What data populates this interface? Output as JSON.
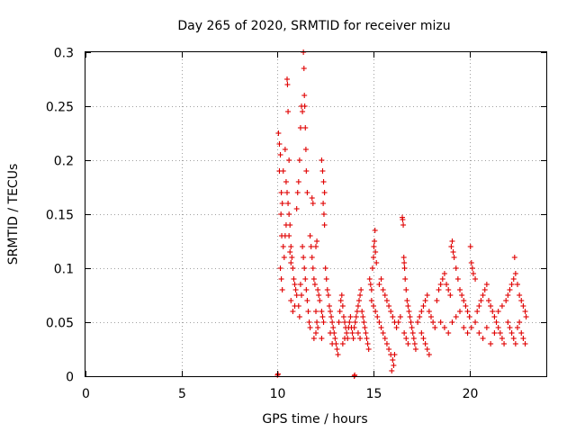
{
  "chart_data": {
    "type": "scatter",
    "title": "Day 265 of 2020, SRMTID for receiver mizu",
    "xlabel": "GPS time / hours",
    "ylabel": "SRMTID / TECUs",
    "xlim": [
      0,
      24
    ],
    "ylim": [
      0,
      0.3
    ],
    "xticks": [
      0,
      5,
      10,
      15,
      20
    ],
    "xtick_labels": [
      "0",
      "5",
      "10",
      "15",
      "20"
    ],
    "yticks": [
      0,
      0.05,
      0.1,
      0.15,
      0.2,
      0.25,
      0.3
    ],
    "ytick_labels": [
      "0",
      "0.05",
      "0.1",
      "0.15",
      "0.2",
      "0.25",
      "0.3"
    ],
    "grid": true,
    "marker": "+",
    "color": "#e00000",
    "series": [
      {
        "name": "SRMTID",
        "points": [
          [
            10.0,
            0.001
          ],
          [
            10.03,
            0.002
          ],
          [
            14.0,
            0.0
          ],
          [
            14.02,
            0.001
          ],
          [
            10.05,
            0.225
          ],
          [
            10.1,
            0.215
          ],
          [
            10.15,
            0.205
          ],
          [
            10.2,
            0.17
          ],
          [
            10.25,
            0.16
          ],
          [
            10.1,
            0.19
          ],
          [
            10.18,
            0.15
          ],
          [
            10.22,
            0.13
          ],
          [
            10.3,
            0.12
          ],
          [
            10.35,
            0.11
          ],
          [
            10.15,
            0.1
          ],
          [
            10.2,
            0.09
          ],
          [
            10.25,
            0.08
          ],
          [
            10.3,
            0.19
          ],
          [
            10.4,
            0.21
          ],
          [
            10.5,
            0.275
          ],
          [
            10.52,
            0.27
          ],
          [
            10.55,
            0.245
          ],
          [
            10.6,
            0.2
          ],
          [
            10.45,
            0.18
          ],
          [
            10.5,
            0.17
          ],
          [
            10.55,
            0.16
          ],
          [
            10.6,
            0.15
          ],
          [
            10.65,
            0.14
          ],
          [
            10.7,
            0.12
          ],
          [
            10.75,
            0.11
          ],
          [
            10.8,
            0.1
          ],
          [
            10.85,
            0.09
          ],
          [
            10.9,
            0.085
          ],
          [
            10.95,
            0.08
          ],
          [
            10.7,
            0.07
          ],
          [
            10.8,
            0.06
          ],
          [
            10.9,
            0.065
          ],
          [
            11.0,
            0.075
          ],
          [
            10.6,
            0.13
          ],
          [
            10.65,
            0.115
          ],
          [
            10.7,
            0.105
          ],
          [
            10.4,
            0.13
          ],
          [
            10.45,
            0.14
          ],
          [
            11.0,
            0.155
          ],
          [
            11.05,
            0.17
          ],
          [
            11.1,
            0.18
          ],
          [
            11.15,
            0.2
          ],
          [
            11.2,
            0.23
          ],
          [
            11.25,
            0.25
          ],
          [
            11.3,
            0.245
          ],
          [
            11.35,
            0.3
          ],
          [
            11.38,
            0.285
          ],
          [
            11.4,
            0.26
          ],
          [
            11.42,
            0.25
          ],
          [
            11.45,
            0.23
          ],
          [
            11.48,
            0.21
          ],
          [
            11.5,
            0.19
          ],
          [
            11.55,
            0.17
          ],
          [
            11.3,
            0.12
          ],
          [
            11.35,
            0.11
          ],
          [
            11.4,
            0.1
          ],
          [
            11.45,
            0.09
          ],
          [
            11.5,
            0.08
          ],
          [
            11.55,
            0.07
          ],
          [
            11.6,
            0.06
          ],
          [
            11.65,
            0.05
          ],
          [
            11.7,
            0.045
          ],
          [
            11.2,
            0.085
          ],
          [
            11.25,
            0.075
          ],
          [
            11.1,
            0.065
          ],
          [
            11.15,
            0.055
          ],
          [
            11.7,
            0.13
          ],
          [
            11.75,
            0.12
          ],
          [
            11.8,
            0.11
          ],
          [
            11.85,
            0.1
          ],
          [
            11.9,
            0.09
          ],
          [
            11.95,
            0.085
          ],
          [
            12.0,
            0.12
          ],
          [
            12.05,
            0.125
          ],
          [
            11.8,
            0.165
          ],
          [
            11.85,
            0.16
          ],
          [
            12.1,
            0.08
          ],
          [
            12.15,
            0.075
          ],
          [
            12.2,
            0.07
          ],
          [
            12.0,
            0.06
          ],
          [
            12.05,
            0.05
          ],
          [
            12.1,
            0.045
          ],
          [
            11.9,
            0.035
          ],
          [
            12.0,
            0.04
          ],
          [
            12.3,
            0.2
          ],
          [
            12.35,
            0.19
          ],
          [
            12.4,
            0.18
          ],
          [
            12.45,
            0.17
          ],
          [
            12.38,
            0.16
          ],
          [
            12.42,
            0.15
          ],
          [
            12.45,
            0.14
          ],
          [
            12.5,
            0.1
          ],
          [
            12.55,
            0.09
          ],
          [
            12.6,
            0.08
          ],
          [
            12.65,
            0.075
          ],
          [
            12.3,
            0.06
          ],
          [
            12.35,
            0.055
          ],
          [
            12.4,
            0.05
          ],
          [
            12.3,
            0.035
          ],
          [
            12.7,
            0.065
          ],
          [
            12.75,
            0.06
          ],
          [
            12.8,
            0.055
          ],
          [
            12.85,
            0.05
          ],
          [
            12.9,
            0.045
          ],
          [
            12.95,
            0.04
          ],
          [
            13.0,
            0.035
          ],
          [
            13.05,
            0.03
          ],
          [
            13.1,
            0.025
          ],
          [
            13.15,
            0.02
          ],
          [
            12.75,
            0.04
          ],
          [
            12.85,
            0.03
          ],
          [
            13.2,
            0.05
          ],
          [
            13.25,
            0.06
          ],
          [
            13.3,
            0.07
          ],
          [
            13.35,
            0.075
          ],
          [
            13.4,
            0.065
          ],
          [
            13.45,
            0.055
          ],
          [
            13.5,
            0.05
          ],
          [
            13.55,
            0.045
          ],
          [
            13.6,
            0.04
          ],
          [
            13.65,
            0.035
          ],
          [
            13.7,
            0.045
          ],
          [
            13.75,
            0.05
          ],
          [
            13.8,
            0.055
          ],
          [
            13.85,
            0.045
          ],
          [
            13.9,
            0.04
          ],
          [
            13.95,
            0.035
          ],
          [
            13.4,
            0.03
          ],
          [
            13.5,
            0.035
          ],
          [
            14.0,
            0.045
          ],
          [
            14.05,
            0.05
          ],
          [
            14.1,
            0.055
          ],
          [
            14.15,
            0.06
          ],
          [
            14.2,
            0.065
          ],
          [
            14.25,
            0.07
          ],
          [
            14.3,
            0.075
          ],
          [
            14.35,
            0.08
          ],
          [
            14.4,
            0.06
          ],
          [
            14.45,
            0.055
          ],
          [
            14.5,
            0.05
          ],
          [
            14.55,
            0.045
          ],
          [
            14.6,
            0.04
          ],
          [
            14.65,
            0.035
          ],
          [
            14.7,
            0.03
          ],
          [
            14.75,
            0.025
          ],
          [
            14.2,
            0.04
          ],
          [
            14.3,
            0.035
          ],
          [
            14.8,
            0.09
          ],
          [
            14.85,
            0.085
          ],
          [
            14.9,
            0.08
          ],
          [
            14.95,
            0.1
          ],
          [
            15.0,
            0.11
          ],
          [
            15.02,
            0.12
          ],
          [
            15.05,
            0.125
          ],
          [
            15.08,
            0.135
          ],
          [
            15.1,
            0.115
          ],
          [
            15.15,
            0.105
          ],
          [
            14.9,
            0.07
          ],
          [
            15.0,
            0.065
          ],
          [
            15.1,
            0.06
          ],
          [
            15.2,
            0.055
          ],
          [
            15.3,
            0.05
          ],
          [
            15.4,
            0.045
          ],
          [
            15.5,
            0.04
          ],
          [
            15.6,
            0.035
          ],
          [
            15.7,
            0.03
          ],
          [
            15.8,
            0.025
          ],
          [
            15.9,
            0.02
          ],
          [
            16.0,
            0.015
          ],
          [
            15.95,
            0.005
          ],
          [
            16.05,
            0.01
          ],
          [
            16.1,
            0.02
          ],
          [
            15.3,
            0.085
          ],
          [
            15.4,
            0.09
          ],
          [
            15.5,
            0.08
          ],
          [
            15.6,
            0.075
          ],
          [
            15.7,
            0.07
          ],
          [
            15.8,
            0.065
          ],
          [
            15.9,
            0.06
          ],
          [
            16.0,
            0.055
          ],
          [
            16.1,
            0.05
          ],
          [
            16.2,
            0.045
          ],
          [
            16.3,
            0.05
          ],
          [
            16.4,
            0.055
          ],
          [
            16.5,
            0.147
          ],
          [
            16.52,
            0.145
          ],
          [
            16.55,
            0.14
          ],
          [
            16.58,
            0.11
          ],
          [
            16.6,
            0.105
          ],
          [
            16.62,
            0.1
          ],
          [
            16.65,
            0.09
          ],
          [
            16.7,
            0.08
          ],
          [
            16.75,
            0.07
          ],
          [
            16.8,
            0.065
          ],
          [
            16.85,
            0.06
          ],
          [
            16.9,
            0.055
          ],
          [
            16.95,
            0.05
          ],
          [
            17.0,
            0.045
          ],
          [
            17.05,
            0.04
          ],
          [
            17.1,
            0.035
          ],
          [
            17.15,
            0.03
          ],
          [
            17.2,
            0.025
          ],
          [
            16.6,
            0.04
          ],
          [
            16.7,
            0.035
          ],
          [
            16.8,
            0.03
          ],
          [
            17.3,
            0.05
          ],
          [
            17.4,
            0.055
          ],
          [
            17.5,
            0.06
          ],
          [
            17.6,
            0.065
          ],
          [
            17.7,
            0.07
          ],
          [
            17.8,
            0.075
          ],
          [
            17.9,
            0.06
          ],
          [
            18.0,
            0.055
          ],
          [
            18.1,
            0.05
          ],
          [
            18.2,
            0.045
          ],
          [
            17.5,
            0.04
          ],
          [
            17.6,
            0.035
          ],
          [
            17.7,
            0.03
          ],
          [
            17.8,
            0.025
          ],
          [
            17.9,
            0.02
          ],
          [
            18.3,
            0.07
          ],
          [
            18.4,
            0.08
          ],
          [
            18.5,
            0.085
          ],
          [
            18.6,
            0.09
          ],
          [
            18.7,
            0.095
          ],
          [
            18.8,
            0.085
          ],
          [
            18.9,
            0.08
          ],
          [
            19.0,
            0.075
          ],
          [
            19.05,
            0.12
          ],
          [
            19.1,
            0.125
          ],
          [
            19.15,
            0.115
          ],
          [
            19.2,
            0.11
          ],
          [
            19.3,
            0.1
          ],
          [
            19.4,
            0.09
          ],
          [
            19.5,
            0.08
          ],
          [
            19.6,
            0.075
          ],
          [
            19.7,
            0.07
          ],
          [
            19.8,
            0.065
          ],
          [
            19.9,
            0.06
          ],
          [
            20.0,
            0.055
          ],
          [
            20.05,
            0.12
          ],
          [
            20.1,
            0.105
          ],
          [
            20.15,
            0.1
          ],
          [
            20.2,
            0.095
          ],
          [
            20.3,
            0.09
          ],
          [
            18.5,
            0.05
          ],
          [
            18.7,
            0.045
          ],
          [
            18.9,
            0.04
          ],
          [
            19.1,
            0.05
          ],
          [
            19.3,
            0.055
          ],
          [
            19.5,
            0.06
          ],
          [
            19.7,
            0.045
          ],
          [
            19.9,
            0.04
          ],
          [
            20.1,
            0.045
          ],
          [
            20.3,
            0.05
          ],
          [
            20.4,
            0.06
          ],
          [
            20.5,
            0.065
          ],
          [
            20.6,
            0.07
          ],
          [
            20.7,
            0.075
          ],
          [
            20.8,
            0.08
          ],
          [
            20.9,
            0.085
          ],
          [
            21.0,
            0.07
          ],
          [
            21.1,
            0.065
          ],
          [
            21.2,
            0.06
          ],
          [
            21.3,
            0.055
          ],
          [
            21.4,
            0.05
          ],
          [
            21.5,
            0.045
          ],
          [
            21.6,
            0.04
          ],
          [
            21.7,
            0.035
          ],
          [
            21.8,
            0.03
          ],
          [
            20.5,
            0.04
          ],
          [
            20.7,
            0.035
          ],
          [
            20.9,
            0.045
          ],
          [
            21.1,
            0.03
          ],
          [
            21.3,
            0.04
          ],
          [
            21.5,
            0.06
          ],
          [
            21.7,
            0.065
          ],
          [
            21.9,
            0.07
          ],
          [
            22.0,
            0.075
          ],
          [
            22.1,
            0.08
          ],
          [
            22.2,
            0.085
          ],
          [
            22.3,
            0.09
          ],
          [
            22.35,
            0.11
          ],
          [
            22.4,
            0.095
          ],
          [
            22.5,
            0.085
          ],
          [
            22.6,
            0.075
          ],
          [
            22.7,
            0.07
          ],
          [
            22.8,
            0.065
          ],
          [
            22.9,
            0.06
          ],
          [
            22.95,
            0.055
          ],
          [
            22.0,
            0.05
          ],
          [
            22.1,
            0.045
          ],
          [
            22.2,
            0.04
          ],
          [
            22.3,
            0.035
          ],
          [
            22.4,
            0.03
          ],
          [
            22.5,
            0.045
          ],
          [
            22.6,
            0.05
          ],
          [
            22.7,
            0.04
          ],
          [
            22.8,
            0.035
          ],
          [
            22.9,
            0.03
          ]
        ]
      }
    ]
  }
}
